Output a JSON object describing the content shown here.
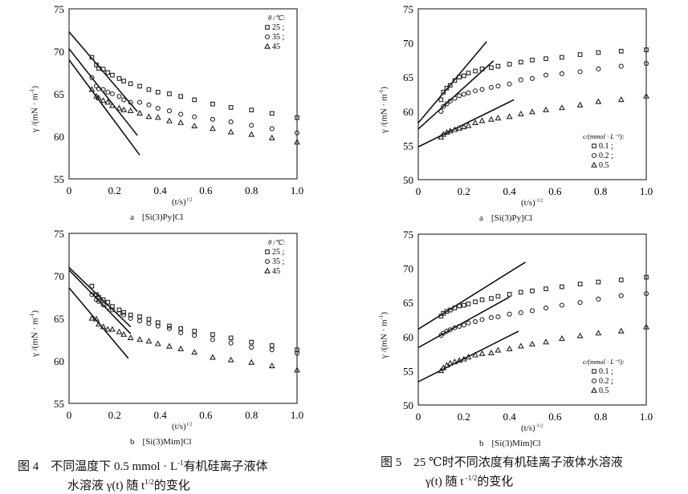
{
  "chart_data": [
    {
      "type": "scatter",
      "figure": "fig4",
      "sublabel": "a",
      "subtitle": "[Si(3)Py]Cl",
      "ylabel": "γ /(mN · m",
      "ylabel_sup": "-1",
      "ylabel_end": ")",
      "xlabel": "(t/s)",
      "xlabel_sup": "1/2",
      "xlim": [
        0,
        1.0
      ],
      "ylim": [
        55,
        75
      ],
      "xticks": [
        "0",
        "0.2",
        "0.4",
        "0.6",
        "0.8",
        "1.0"
      ],
      "yticks": [
        "55",
        "60",
        "65",
        "70",
        "75"
      ],
      "grid": false,
      "legend_title": "θ /℃:",
      "legend_placement": "top-right",
      "x": [
        0.1,
        0.12,
        0.13,
        0.15,
        0.17,
        0.19,
        0.22,
        0.24,
        0.27,
        0.31,
        0.35,
        0.39,
        0.44,
        0.49,
        0.55,
        0.63,
        0.71,
        0.8,
        0.89,
        1.0
      ],
      "series": [
        {
          "name": "25 ;",
          "marker": "square",
          "values": [
            69.3,
            68.4,
            68.0,
            67.9,
            67.5,
            67.2,
            66.8,
            66.5,
            66.2,
            65.9,
            65.5,
            65.2,
            65.0,
            64.7,
            64.3,
            63.8,
            63.4,
            63.1,
            62.7,
            62.2
          ],
          "fit": [
            [
              0,
              72.3
            ],
            [
              0.3,
              62.9
            ]
          ]
        },
        {
          "name": "35 ;",
          "marker": "circle",
          "values": [
            66.9,
            65.9,
            65.6,
            65.5,
            65.2,
            65.0,
            64.7,
            64.3,
            64.0,
            64.0,
            63.7,
            63.3,
            63.0,
            62.6,
            62.3,
            62.0,
            61.7,
            61.3,
            60.9,
            60.4
          ],
          "fit": [
            [
              0,
              70.3
            ],
            [
              0.3,
              60.1
            ]
          ]
        },
        {
          "name": "45",
          "marker": "triangle",
          "values": [
            65.5,
            64.7,
            64.5,
            64.2,
            64.0,
            63.6,
            63.3,
            63.1,
            63.0,
            62.7,
            62.3,
            62.2,
            61.8,
            61.6,
            61.2,
            60.9,
            60.5,
            60.2,
            59.8,
            59.3
          ],
          "fit": [
            [
              0,
              69.0
            ],
            [
              0.31,
              57.8
            ]
          ]
        }
      ]
    },
    {
      "type": "scatter",
      "figure": "fig5",
      "sublabel": "a",
      "subtitle": "[Si(3)Py]Cl",
      "ylabel": "γ /(mN · m",
      "ylabel_sup": "-1",
      "ylabel_end": ")",
      "xlabel": "(t/s)",
      "xlabel_sup": "-1/2",
      "xlim": [
        0,
        1.0
      ],
      "ylim": [
        50,
        75
      ],
      "xticks": [
        "0",
        "0.2",
        "0.4",
        "0.6",
        "0.8",
        "1.0"
      ],
      "yticks": [
        "50",
        "55",
        "60",
        "65",
        "70",
        "75"
      ],
      "grid": false,
      "legend_title": "c/(mmol · L⁻¹):",
      "legend_placement": "bottom-right",
      "x": [
        0.1,
        0.11,
        0.125,
        0.14,
        0.16,
        0.18,
        0.2,
        0.22,
        0.25,
        0.28,
        0.32,
        0.35,
        0.4,
        0.45,
        0.5,
        0.56,
        0.63,
        0.71,
        0.79,
        0.89,
        1.0
      ],
      "series": [
        {
          "name": "0.1 ;",
          "marker": "square",
          "values": [
            61.7,
            62.8,
            63.4,
            63.8,
            64.5,
            65.0,
            65.2,
            65.6,
            65.9,
            66.2,
            66.4,
            66.6,
            66.9,
            67.2,
            67.5,
            67.7,
            67.9,
            68.3,
            68.6,
            68.8,
            69.0
          ],
          "fit": [
            [
              0,
              58.3
            ],
            [
              0.3,
              70.2
            ]
          ]
        },
        {
          "name": "0.2 ;",
          "marker": "circle",
          "values": [
            60.0,
            60.7,
            61.1,
            61.5,
            61.9,
            62.3,
            62.5,
            62.7,
            63.0,
            63.2,
            63.5,
            63.7,
            64.0,
            64.6,
            64.8,
            65.3,
            65.5,
            65.8,
            66.2,
            66.6,
            67.0
          ],
          "fit": [
            [
              0,
              57.4
            ],
            [
              0.33,
              67.4
            ]
          ]
        },
        {
          "name": "0.5",
          "marker": "triangle",
          "values": [
            56.2,
            56.6,
            56.9,
            57.1,
            57.3,
            57.5,
            57.7,
            57.9,
            58.3,
            58.6,
            58.8,
            59.0,
            59.2,
            59.6,
            59.9,
            60.2,
            60.5,
            60.9,
            61.4,
            61.7,
            62.2
          ],
          "fit": [
            [
              0,
              54.8
            ],
            [
              0.42,
              61.7
            ]
          ]
        }
      ]
    },
    {
      "type": "scatter",
      "figure": "fig4",
      "sublabel": "b",
      "subtitle": "[Si(3)Mim]Cl",
      "ylabel": "γ /(mN · m",
      "ylabel_sup": "-1",
      "ylabel_end": ")",
      "xlabel": "(t/s)",
      "xlabel_sup": "1/2",
      "xlim": [
        0,
        1.0
      ],
      "ylim": [
        55,
        75
      ],
      "xticks": [
        "0",
        "0.2",
        "0.4",
        "0.6",
        "0.8",
        "1.0"
      ],
      "yticks": [
        "55",
        "60",
        "65",
        "70",
        "75"
      ],
      "grid": false,
      "legend_title": "θ /℃:",
      "legend_placement": "top-right",
      "x": [
        0.1,
        0.12,
        0.13,
        0.15,
        0.17,
        0.19,
        0.22,
        0.24,
        0.27,
        0.31,
        0.35,
        0.39,
        0.44,
        0.49,
        0.55,
        0.63,
        0.71,
        0.8,
        0.89,
        1.0
      ],
      "series": [
        {
          "name": "25 ;",
          "marker": "square",
          "values": [
            68.8,
            67.8,
            67.5,
            67.2,
            66.9,
            66.4,
            66.0,
            65.7,
            65.4,
            65.2,
            64.9,
            64.5,
            64.1,
            63.8,
            63.5,
            63.1,
            62.7,
            62.2,
            61.8,
            61.3
          ],
          "fit": [
            [
              0,
              71.0
            ],
            [
              0.27,
              64.0
            ]
          ]
        },
        {
          "name": "35 ;",
          "marker": "circle",
          "values": [
            67.8,
            67.2,
            67.0,
            66.6,
            66.3,
            66.0,
            65.6,
            65.4,
            65.0,
            64.7,
            64.4,
            64.1,
            63.8,
            63.3,
            63.0,
            62.5,
            62.1,
            61.6,
            61.3,
            60.9
          ],
          "fit": [
            [
              0,
              70.7
            ],
            [
              0.27,
              63.2
            ]
          ]
        },
        {
          "name": "45",
          "marker": "triangle",
          "values": [
            65.0,
            64.9,
            64.3,
            64.0,
            63.7,
            63.7,
            63.4,
            63.1,
            62.7,
            62.5,
            62.3,
            62.0,
            61.7,
            61.4,
            61.0,
            60.4,
            60.1,
            59.8,
            59.4,
            58.9
          ],
          "fit": [
            [
              0,
              68.6
            ],
            [
              0.26,
              60.3
            ]
          ]
        }
      ]
    },
    {
      "type": "scatter",
      "figure": "fig5",
      "sublabel": "b",
      "subtitle": "[Si(3)Mim]Cl",
      "ylabel": "γ /(mN · m",
      "ylabel_sup": "-1",
      "ylabel_end": ")",
      "xlabel": "(t/s)",
      "xlabel_sup": "-1/2",
      "xlim": [
        0,
        1.0
      ],
      "ylim": [
        50,
        75
      ],
      "xticks": [
        "0",
        "0.2",
        "0.4",
        "0.6",
        "0.8",
        "1.0"
      ],
      "yticks": [
        "50",
        "55",
        "60",
        "65",
        "70",
        "75"
      ],
      "grid": false,
      "legend_title": "c/(mmol · L⁻¹):",
      "legend_placement": "bottom-right",
      "x": [
        0.1,
        0.11,
        0.125,
        0.14,
        0.16,
        0.18,
        0.2,
        0.22,
        0.25,
        0.28,
        0.32,
        0.35,
        0.4,
        0.45,
        0.5,
        0.56,
        0.63,
        0.71,
        0.79,
        0.89,
        1.0
      ],
      "series": [
        {
          "name": "0.1 ;",
          "marker": "square",
          "values": [
            63.0,
            63.4,
            63.7,
            63.9,
            64.2,
            64.5,
            64.6,
            64.8,
            65.1,
            65.4,
            65.6,
            65.9,
            66.2,
            66.5,
            66.7,
            67.0,
            67.3,
            67.7,
            68.0,
            68.3,
            68.7
          ],
          "fit": [
            [
              0,
              61.1
            ],
            [
              0.47,
              70.9
            ]
          ]
        },
        {
          "name": "0.2 ;",
          "marker": "circle",
          "values": [
            60.2,
            60.5,
            60.8,
            61.0,
            61.3,
            61.5,
            61.7,
            62.0,
            62.2,
            62.5,
            62.8,
            62.9,
            63.3,
            63.5,
            63.8,
            64.2,
            64.6,
            65.0,
            65.5,
            66.0,
            66.3
          ],
          "fit": [
            [
              0,
              58.4
            ],
            [
              0.4,
              65.8
            ]
          ]
        },
        {
          "name": "0.5",
          "marker": "triangle",
          "values": [
            55.0,
            55.4,
            55.8,
            56.1,
            56.3,
            56.5,
            56.7,
            57.0,
            57.3,
            57.5,
            57.6,
            58.0,
            58.2,
            58.6,
            58.9,
            59.2,
            59.7,
            60.1,
            60.5,
            60.8,
            61.4
          ],
          "fit": [
            [
              0,
              53.4
            ],
            [
              0.44,
              60.8
            ]
          ]
        }
      ]
    }
  ],
  "captions": {
    "fig4": {
      "line1_a": "图 4　不同温度下 0.5 mmol · L",
      "line1_sup": "-1",
      "line1_b": "有机硅离子液体",
      "line2_a": "水溶液 γ(t) 随 t",
      "line2_sup": "1/2",
      "line2_b": "的变化"
    },
    "fig5": {
      "line1": "图 5　25 ℃时不同浓度有机硅离子液体水溶液",
      "line2_a": "γ(t) 随 t",
      "line2_sup": " -1/2",
      "line2_b": "的变化"
    }
  }
}
